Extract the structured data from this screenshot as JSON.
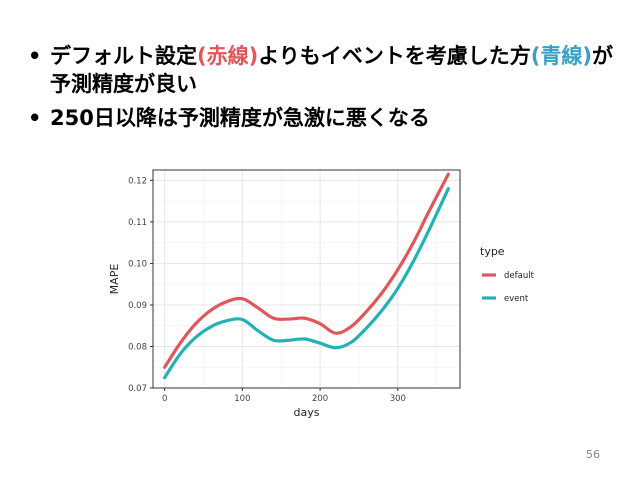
{
  "slide": {
    "bullets": [
      {
        "marker": "•",
        "parts": [
          {
            "text": "デフォルト設定",
            "style": "normal"
          },
          {
            "text": "(赤線)",
            "style": "red"
          },
          {
            "text": "よりもイベントを考慮した方",
            "style": "normal"
          },
          {
            "text": "(青線)",
            "style": "blue"
          },
          {
            "text": "が予測精度が良い",
            "style": "normal"
          }
        ]
      },
      {
        "marker": "•",
        "parts": [
          {
            "text": "250日以降は予測精度が急激に悪くなる",
            "style": "normal"
          }
        ]
      }
    ],
    "page_number": "56"
  },
  "colors": {
    "default": "#e15759",
    "event": "#20b2b8",
    "panel": "#ffffff",
    "grid": "#e6e6e6"
  },
  "chart_data": {
    "type": "line",
    "xlabel": "days",
    "ylabel": "MAPE",
    "xlim": [
      -15,
      380
    ],
    "ylim": [
      0.07,
      0.1225
    ],
    "x_ticks": [
      0,
      100,
      200,
      300
    ],
    "y_ticks": [
      0.07,
      0.08,
      0.09,
      0.1,
      0.11,
      0.12
    ],
    "y_tick_labels": [
      "0.07",
      "0.08",
      "0.09",
      "0.10",
      "0.11",
      "0.12"
    ],
    "grid": true,
    "legend": {
      "title": "type",
      "placement": "right"
    },
    "series": [
      {
        "name": "default",
        "x": [
          0,
          20,
          40,
          60,
          80,
          100,
          120,
          140,
          160,
          180,
          200,
          220,
          240,
          260,
          280,
          300,
          320,
          340,
          365
        ],
        "values": [
          0.075,
          0.0808,
          0.0855,
          0.0888,
          0.0908,
          0.0915,
          0.0893,
          0.0868,
          0.0866,
          0.0868,
          0.0855,
          0.0832,
          0.0848,
          0.0885,
          0.093,
          0.0985,
          0.105,
          0.1125,
          0.1215
        ]
      },
      {
        "name": "event",
        "x": [
          0,
          20,
          40,
          60,
          80,
          100,
          120,
          140,
          160,
          180,
          200,
          220,
          240,
          260,
          280,
          300,
          320,
          340,
          365
        ],
        "values": [
          0.0725,
          0.0782,
          0.0822,
          0.0848,
          0.0862,
          0.0865,
          0.0838,
          0.0815,
          0.0815,
          0.0818,
          0.0808,
          0.0797,
          0.081,
          0.0845,
          0.0888,
          0.094,
          0.1005,
          0.108,
          0.118
        ]
      }
    ]
  }
}
